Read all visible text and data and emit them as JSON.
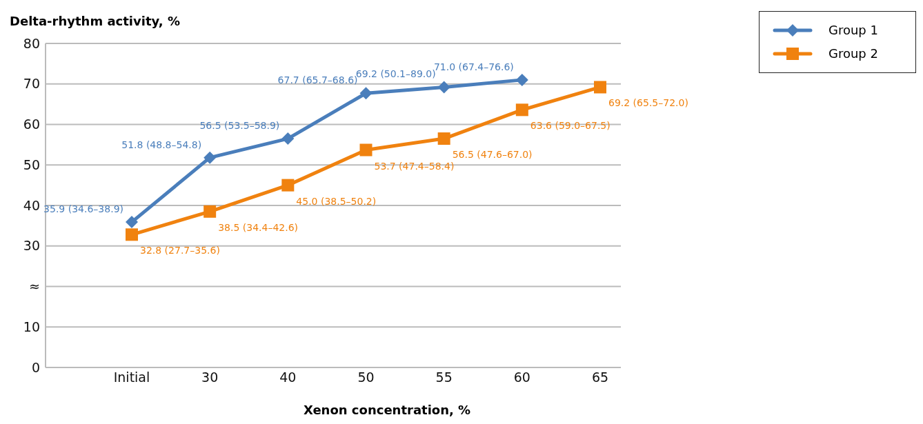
{
  "chart_data": {
    "type": "line",
    "xlabel": "Xenon concentration, %",
    "ylabel": "Delta-rhythm activity, %",
    "categories": [
      "Initial",
      "30",
      "40",
      "50",
      "55",
      "60",
      "65"
    ],
    "series": [
      {
        "name": "Group 1",
        "color": "#4a7ebb",
        "marker": "diamond",
        "values": [
          35.9,
          51.8,
          56.5,
          67.7,
          69.2,
          71.0,
          null
        ],
        "value_labels": [
          "35.9 (34.6–38.9)",
          "51.8 (48.8–54.8)",
          "56.5 (53.5–58.9)",
          "67.7 (65.7–68.6)",
          "69.2 (50.1–89.0)",
          "71.0 (67.4–76.6)",
          null
        ]
      },
      {
        "name": "Group 2",
        "color": "#f0820f",
        "marker": "square",
        "values": [
          32.8,
          38.5,
          45.0,
          53.7,
          56.5,
          63.6,
          69.2
        ],
        "value_labels": [
          "32.8 (27.7–35.6)",
          "38.5 (34.4–42.6)",
          "45.0 (38.5–50.2)",
          "53.7 (47.4–58.4)",
          "56.5 (47.6–67.0)",
          "63.6 (59.0–67.5)",
          "69.2 (65.5–72.0)"
        ]
      }
    ],
    "ylim": [
      0,
      80
    ],
    "yticks": [
      0,
      10,
      {
        "value": 20,
        "label": "≈"
      },
      30,
      40,
      50,
      60,
      70,
      80
    ],
    "grid": "y",
    "legend": "top right",
    "line_style": "solid"
  }
}
